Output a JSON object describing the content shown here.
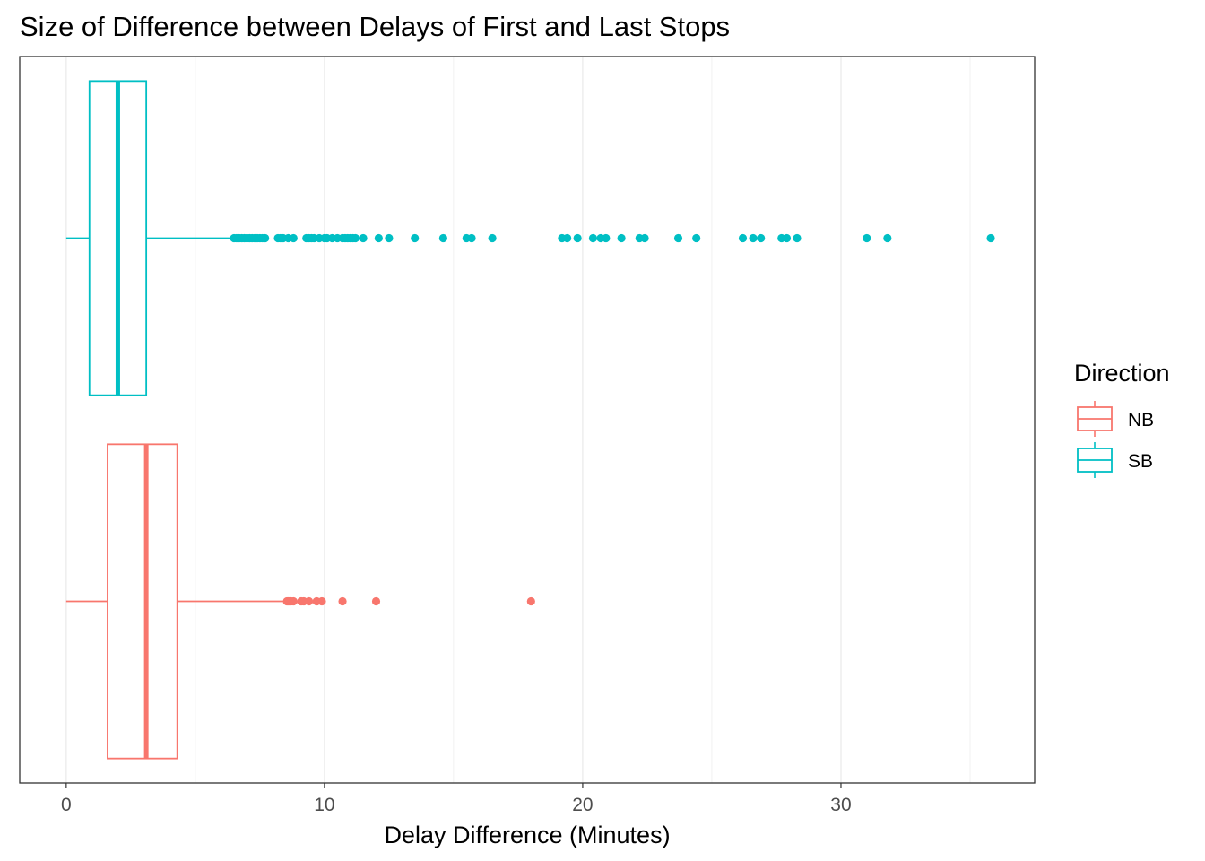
{
  "chart_data": {
    "type": "boxplot",
    "orientation": "horizontal",
    "title": "Size of Difference between Delays of First and Last Stops",
    "xlabel": "Delay Difference (Minutes)",
    "ylabel": "",
    "xlim": [
      -1.8,
      37.5
    ],
    "x_ticks": [
      0,
      10,
      20,
      30
    ],
    "x_tick_labels": [
      "0",
      "10",
      "20",
      "30"
    ],
    "grid": true,
    "legend_title": "Direction",
    "legend_position": "right",
    "series": [
      {
        "name": "NB",
        "color": "#F8766D",
        "whisker_low": 0,
        "q1": 1.6,
        "median": 3.1,
        "q3": 4.3,
        "whisker_high": 8.5,
        "outliers": [
          8.55,
          8.6,
          8.65,
          8.7,
          8.8,
          9.1,
          9.2,
          9.4,
          9.7,
          9.9,
          10.7,
          12.0,
          18.0
        ]
      },
      {
        "name": "SB",
        "color": "#00BFC4",
        "whisker_low": 0,
        "q1": 0.9,
        "median": 2.0,
        "q3": 3.1,
        "whisker_high": 6.4,
        "outliers": [
          6.5,
          6.6,
          6.7,
          6.8,
          6.9,
          7.0,
          7.1,
          7.2,
          7.3,
          7.4,
          7.5,
          7.6,
          7.7,
          8.2,
          8.3,
          8.4,
          8.6,
          8.8,
          9.3,
          9.4,
          9.5,
          9.6,
          9.8,
          10.0,
          10.1,
          10.3,
          10.5,
          10.7,
          10.8,
          10.9,
          11.0,
          11.1,
          11.2,
          11.5,
          12.1,
          12.5,
          13.5,
          14.6,
          15.5,
          15.7,
          16.5,
          19.2,
          19.4,
          19.8,
          20.4,
          20.7,
          20.9,
          21.5,
          22.2,
          22.4,
          23.7,
          24.4,
          26.2,
          26.6,
          26.9,
          27.7,
          27.9,
          28.3,
          31.0,
          31.8,
          35.8
        ]
      }
    ]
  }
}
